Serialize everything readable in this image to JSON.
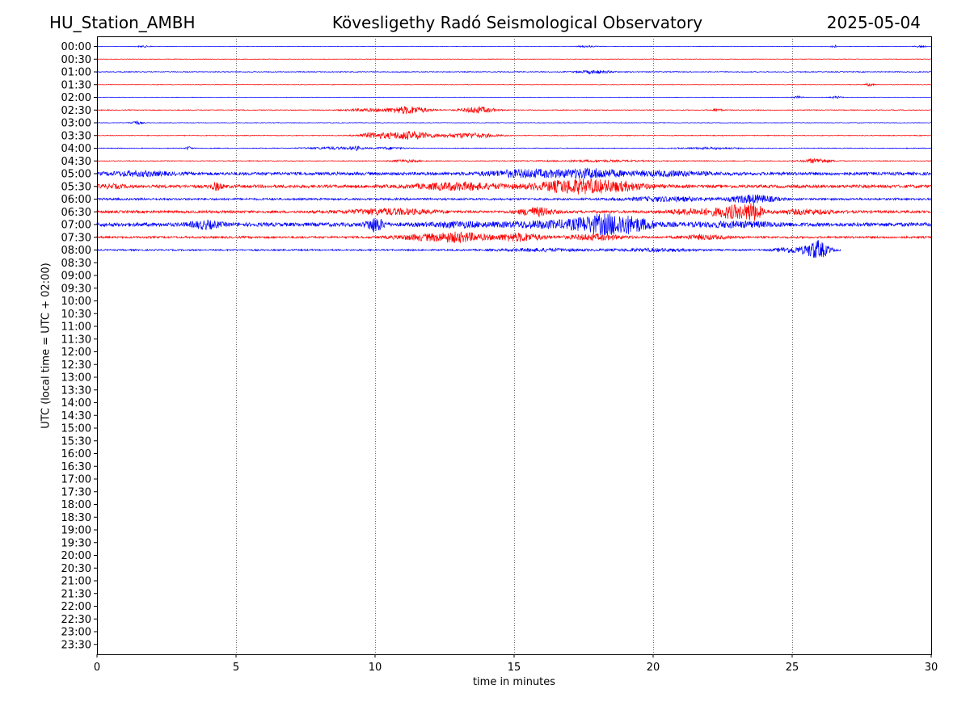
{
  "header": {
    "station": "HU_Station_AMBH",
    "title": "Kövesligethy Radó Seismological Observatory",
    "date": "2025-05-04"
  },
  "chart_data": {
    "type": "line",
    "title": "Kövesligethy Radó Seismological Observatory",
    "xlabel": "time in minutes",
    "ylabel": "UTC (local time = UTC + 02:00)",
    "xlim": [
      0,
      30
    ],
    "x_ticks": [
      "0",
      "5",
      "10",
      "15",
      "20",
      "25",
      "30"
    ],
    "x_tick_values": [
      0,
      5,
      10,
      15,
      20,
      25,
      30
    ],
    "vertical_grid": true,
    "row_labels": [
      "00:00",
      "00:30",
      "01:00",
      "01:30",
      "02:00",
      "02:30",
      "03:00",
      "03:30",
      "04:00",
      "04:30",
      "05:00",
      "05:30",
      "06:00",
      "06:30",
      "07:00",
      "07:30",
      "08:00",
      "08:30",
      "09:00",
      "09:30",
      "10:00",
      "10:30",
      "11:00",
      "11:30",
      "12:00",
      "12:30",
      "13:00",
      "13:30",
      "14:00",
      "14:30",
      "15:00",
      "15:30",
      "16:00",
      "16:30",
      "17:00",
      "17:30",
      "18:00",
      "18:30",
      "19:00",
      "19:30",
      "20:00",
      "20:30",
      "21:00",
      "21:30",
      "22:00",
      "22:30",
      "23:00",
      "23:30"
    ],
    "colors": {
      "even_row": "#0000ff",
      "odd_row": "#ff0000",
      "grid": "#000000"
    },
    "series": [
      {
        "row": "00:00",
        "end_minute": 30,
        "noise": 0.02,
        "events": [
          {
            "t": 1.7,
            "a": 0.05,
            "w": 0.3
          },
          {
            "t": 17.6,
            "a": 0.06,
            "w": 0.3
          },
          {
            "t": 26.5,
            "a": 0.12,
            "w": 0.1
          },
          {
            "t": 29.6,
            "a": 0.06,
            "w": 0.2
          }
        ]
      },
      {
        "row": "00:30",
        "end_minute": 30,
        "noise": 0.02,
        "events": []
      },
      {
        "row": "01:00",
        "end_minute": 30,
        "noise": 0.03,
        "events": [
          {
            "t": 17.9,
            "a": 0.12,
            "w": 0.6
          }
        ]
      },
      {
        "row": "01:30",
        "end_minute": 30,
        "noise": 0.02,
        "events": [
          {
            "t": 27.8,
            "a": 0.12,
            "w": 0.15
          }
        ]
      },
      {
        "row": "02:00",
        "end_minute": 30,
        "noise": 0.02,
        "events": [
          {
            "t": 25.2,
            "a": 0.08,
            "w": 0.2
          },
          {
            "t": 26.6,
            "a": 0.08,
            "w": 0.2
          }
        ]
      },
      {
        "row": "02:30",
        "end_minute": 30,
        "noise": 0.03,
        "events": [
          {
            "t": 9.7,
            "a": 0.1,
            "w": 0.8
          },
          {
            "t": 11.2,
            "a": 0.3,
            "w": 0.7
          },
          {
            "t": 13.7,
            "a": 0.25,
            "w": 0.6
          },
          {
            "t": 22.3,
            "a": 0.1,
            "w": 0.2
          }
        ]
      },
      {
        "row": "03:00",
        "end_minute": 30,
        "noise": 0.02,
        "events": [
          {
            "t": 1.4,
            "a": 0.15,
            "w": 0.2
          }
        ]
      },
      {
        "row": "03:30",
        "end_minute": 30,
        "noise": 0.03,
        "events": [
          {
            "t": 9.9,
            "a": 0.18,
            "w": 0.5
          },
          {
            "t": 11.2,
            "a": 0.32,
            "w": 0.9
          },
          {
            "t": 13.4,
            "a": 0.2,
            "w": 0.9
          }
        ]
      },
      {
        "row": "04:00",
        "end_minute": 30,
        "noise": 0.03,
        "events": [
          {
            "t": 3.3,
            "a": 0.12,
            "w": 0.1
          },
          {
            "t": 8.5,
            "a": 0.08,
            "w": 1.0
          },
          {
            "t": 9.3,
            "a": 0.12,
            "w": 0.2
          },
          {
            "t": 10.5,
            "a": 0.08,
            "w": 0.5
          },
          {
            "t": 22.0,
            "a": 0.06,
            "w": 1.0
          }
        ]
      },
      {
        "row": "04:30",
        "end_minute": 30,
        "noise": 0.03,
        "events": [
          {
            "t": 11.1,
            "a": 0.1,
            "w": 0.5
          },
          {
            "t": 18.0,
            "a": 0.06,
            "w": 2.0
          },
          {
            "t": 25.9,
            "a": 0.18,
            "w": 0.5
          }
        ]
      },
      {
        "row": "05:00",
        "end_minute": 30,
        "noise": 0.12,
        "events": [
          {
            "t": 1.5,
            "a": 0.15,
            "w": 1.0
          },
          {
            "t": 15.5,
            "a": 0.25,
            "w": 1.5
          },
          {
            "t": 17.8,
            "a": 0.3,
            "w": 1.0
          },
          {
            "t": 20.5,
            "a": 0.15,
            "w": 1.5
          }
        ]
      },
      {
        "row": "05:30",
        "end_minute": 30,
        "noise": 0.12,
        "events": [
          {
            "t": 0.5,
            "a": 0.1,
            "w": 0.5
          },
          {
            "t": 4.3,
            "a": 0.25,
            "w": 0.2
          },
          {
            "t": 13.0,
            "a": 0.25,
            "w": 1.5
          },
          {
            "t": 17.3,
            "a": 0.5,
            "w": 1.5
          },
          {
            "t": 19.0,
            "a": 0.15,
            "w": 1.0
          }
        ]
      },
      {
        "row": "06:00",
        "end_minute": 30,
        "noise": 0.08,
        "events": [
          {
            "t": 20.5,
            "a": 0.15,
            "w": 1.5
          },
          {
            "t": 23.6,
            "a": 0.3,
            "w": 0.8
          }
        ]
      },
      {
        "row": "06:30",
        "end_minute": 30,
        "noise": 0.1,
        "events": [
          {
            "t": 10.5,
            "a": 0.2,
            "w": 1.5
          },
          {
            "t": 15.8,
            "a": 0.3,
            "w": 0.6
          },
          {
            "t": 21.5,
            "a": 0.2,
            "w": 1.0
          },
          {
            "t": 22.9,
            "a": 0.45,
            "w": 0.6
          },
          {
            "t": 23.6,
            "a": 0.6,
            "w": 0.3
          },
          {
            "t": 25.5,
            "a": 0.15,
            "w": 1.0
          }
        ]
      },
      {
        "row": "07:00",
        "end_minute": 30,
        "noise": 0.15,
        "events": [
          {
            "t": 3.9,
            "a": 0.25,
            "w": 0.5
          },
          {
            "t": 10.0,
            "a": 0.5,
            "w": 0.3
          },
          {
            "t": 13.0,
            "a": 0.15,
            "w": 1.0
          },
          {
            "t": 16.0,
            "a": 0.2,
            "w": 1.5
          },
          {
            "t": 18.0,
            "a": 0.45,
            "w": 1.0
          },
          {
            "t": 19.0,
            "a": 0.5,
            "w": 1.0
          },
          {
            "t": 23.0,
            "a": 0.15,
            "w": 1.5
          }
        ]
      },
      {
        "row": "07:30",
        "end_minute": 30,
        "noise": 0.08,
        "events": [
          {
            "t": 11.5,
            "a": 0.15,
            "w": 1.0
          },
          {
            "t": 13.0,
            "a": 0.35,
            "w": 1.0
          },
          {
            "t": 15.2,
            "a": 0.3,
            "w": 0.8
          },
          {
            "t": 17.9,
            "a": 0.2,
            "w": 1.0
          },
          {
            "t": 21.8,
            "a": 0.15,
            "w": 0.8
          }
        ]
      },
      {
        "row": "08:00",
        "end_minute": 26.75,
        "noise": 0.06,
        "events": [
          {
            "t": 16.0,
            "a": 0.1,
            "w": 1.5
          },
          {
            "t": 20.0,
            "a": 0.1,
            "w": 1.5
          },
          {
            "t": 25.0,
            "a": 0.2,
            "w": 0.6
          },
          {
            "t": 25.9,
            "a": 0.7,
            "w": 0.4
          }
        ]
      }
    ]
  }
}
